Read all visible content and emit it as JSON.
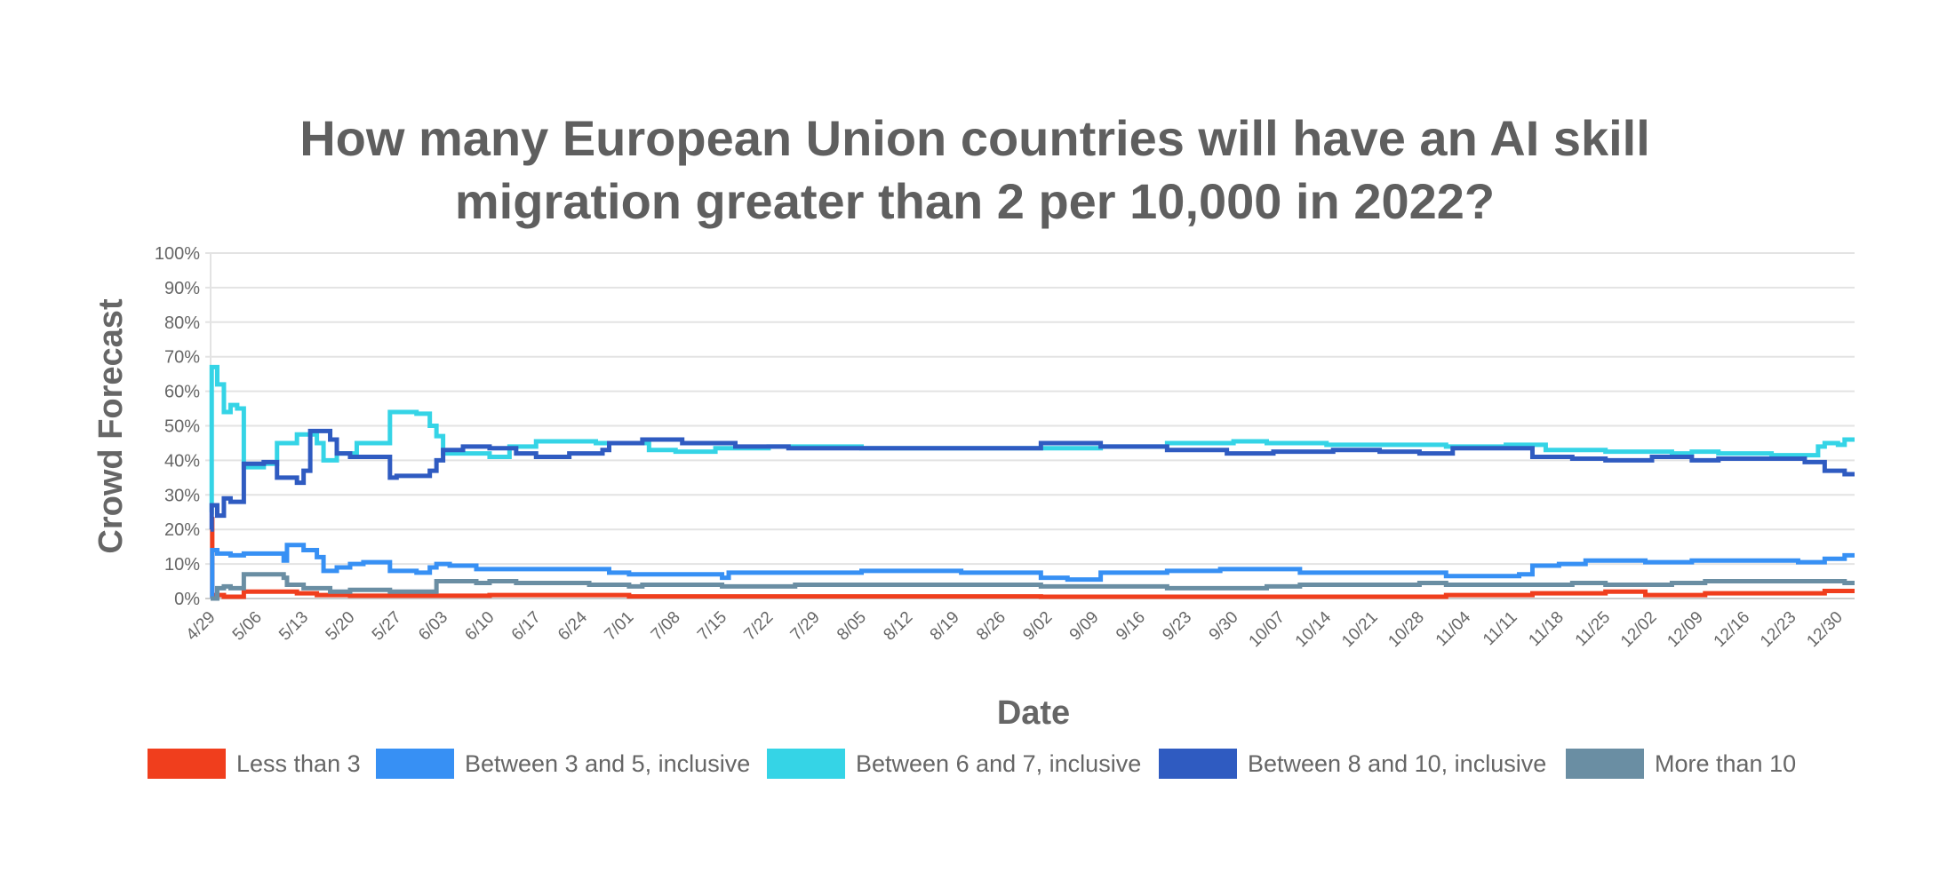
{
  "chart_data": {
    "type": "line",
    "step": true,
    "title_lines": [
      "How many European Union countries will have an AI skill",
      "migration greater than 2 per 10,000 in 2022?"
    ],
    "xlabel": "Date",
    "ylabel": "Crowd Forecast",
    "xlim": [
      "2022-04-29",
      "2023-01-01"
    ],
    "ylim": [
      0,
      100
    ],
    "yticks": [
      "0%",
      "10%",
      "20%",
      "30%",
      "40%",
      "50%",
      "60%",
      "70%",
      "80%",
      "90%",
      "100%"
    ],
    "xticks": [
      "4/29",
      "5/06",
      "5/13",
      "5/20",
      "5/27",
      "6/03",
      "6/10",
      "6/17",
      "6/24",
      "7/01",
      "7/08",
      "7/15",
      "7/22",
      "7/29",
      "8/05",
      "8/12",
      "8/19",
      "8/26",
      "9/02",
      "9/09",
      "9/16",
      "9/23",
      "9/30",
      "10/07",
      "10/14",
      "10/21",
      "10/28",
      "11/04",
      "11/11",
      "11/18",
      "11/25",
      "12/02",
      "12/09",
      "12/16",
      "12/23",
      "12/30"
    ],
    "xtick_dates": [
      "2022-04-29",
      "2022-05-06",
      "2022-05-13",
      "2022-05-20",
      "2022-05-27",
      "2022-06-03",
      "2022-06-10",
      "2022-06-17",
      "2022-06-24",
      "2022-07-01",
      "2022-07-08",
      "2022-07-15",
      "2022-07-22",
      "2022-07-29",
      "2022-08-05",
      "2022-08-12",
      "2022-08-19",
      "2022-08-26",
      "2022-09-02",
      "2022-09-09",
      "2022-09-16",
      "2022-09-23",
      "2022-09-30",
      "2022-10-07",
      "2022-10-14",
      "2022-10-21",
      "2022-10-28",
      "2022-11-04",
      "2022-11-11",
      "2022-11-18",
      "2022-11-25",
      "2022-12-02",
      "2022-12-09",
      "2022-12-16",
      "2022-12-23",
      "2022-12-30"
    ],
    "grid": true,
    "legend_position": "bottom",
    "series": [
      {
        "name": "Less than 3",
        "color": "#f03e1d",
        "points": [
          [
            "2022-04-29",
            23
          ],
          [
            "2022-04-29T06",
            1
          ],
          [
            "2022-05-01",
            0.5
          ],
          [
            "2022-05-04",
            2
          ],
          [
            "2022-05-12",
            1.5
          ],
          [
            "2022-05-15",
            1
          ],
          [
            "2022-05-20",
            0.8
          ],
          [
            "2022-06-10",
            1
          ],
          [
            "2022-07-01",
            0.6
          ],
          [
            "2022-09-01",
            0.5
          ],
          [
            "2022-11-01",
            1
          ],
          [
            "2022-11-14",
            1.5
          ],
          [
            "2022-11-25",
            2
          ],
          [
            "2022-12-01",
            1
          ],
          [
            "2022-12-10",
            1.5
          ],
          [
            "2022-12-28",
            2.2
          ]
        ]
      },
      {
        "name": "Between 3 and 5, inclusive",
        "color": "#3790f4",
        "points": [
          [
            "2022-04-29",
            0
          ],
          [
            "2022-04-29T06",
            14
          ],
          [
            "2022-04-30",
            13
          ],
          [
            "2022-05-02",
            12.5
          ],
          [
            "2022-05-04",
            13
          ],
          [
            "2022-05-10",
            11
          ],
          [
            "2022-05-10T12",
            15.5
          ],
          [
            "2022-05-13",
            14
          ],
          [
            "2022-05-15",
            12
          ],
          [
            "2022-05-16",
            8
          ],
          [
            "2022-05-18",
            9
          ],
          [
            "2022-05-20",
            10
          ],
          [
            "2022-05-22",
            10.5
          ],
          [
            "2022-05-26",
            8
          ],
          [
            "2022-05-30",
            7.5
          ],
          [
            "2022-06-01",
            9
          ],
          [
            "2022-06-02",
            10
          ],
          [
            "2022-06-04",
            9.5
          ],
          [
            "2022-06-08",
            8.5
          ],
          [
            "2022-06-20",
            8.5
          ],
          [
            "2022-06-28",
            7.5
          ],
          [
            "2022-07-01",
            7
          ],
          [
            "2022-07-10",
            7
          ],
          [
            "2022-07-15",
            6
          ],
          [
            "2022-07-16",
            7.5
          ],
          [
            "2022-08-05",
            8
          ],
          [
            "2022-08-20",
            7.5
          ],
          [
            "2022-09-01",
            6
          ],
          [
            "2022-09-05",
            5.5
          ],
          [
            "2022-09-10",
            7.5
          ],
          [
            "2022-09-20",
            8
          ],
          [
            "2022-09-28",
            8.5
          ],
          [
            "2022-10-10",
            7.5
          ],
          [
            "2022-10-28",
            7.5
          ],
          [
            "2022-11-01",
            6.5
          ],
          [
            "2022-11-12",
            7
          ],
          [
            "2022-11-14",
            9.5
          ],
          [
            "2022-11-18",
            10
          ],
          [
            "2022-11-22",
            11
          ],
          [
            "2022-12-01",
            10.5
          ],
          [
            "2022-12-08",
            11
          ],
          [
            "2022-12-20",
            11
          ],
          [
            "2022-12-24",
            10.5
          ],
          [
            "2022-12-28",
            11.5
          ],
          [
            "2022-12-31",
            12.5
          ]
        ]
      },
      {
        "name": "Between 6 and 7, inclusive",
        "color": "#35d4e6",
        "points": [
          [
            "2022-04-29",
            25
          ],
          [
            "2022-04-29T04",
            67
          ],
          [
            "2022-04-30",
            62
          ],
          [
            "2022-05-01",
            54
          ],
          [
            "2022-05-02",
            56
          ],
          [
            "2022-05-03",
            55
          ],
          [
            "2022-05-04",
            38
          ],
          [
            "2022-05-07",
            39
          ],
          [
            "2022-05-09",
            45
          ],
          [
            "2022-05-12",
            47.5
          ],
          [
            "2022-05-15",
            45
          ],
          [
            "2022-05-16",
            40
          ],
          [
            "2022-05-18",
            42
          ],
          [
            "2022-05-21",
            45
          ],
          [
            "2022-05-26",
            54
          ],
          [
            "2022-05-30",
            53.5
          ],
          [
            "2022-06-01",
            50
          ],
          [
            "2022-06-02",
            47
          ],
          [
            "2022-06-03",
            42
          ],
          [
            "2022-06-08",
            42
          ],
          [
            "2022-06-10",
            41
          ],
          [
            "2022-06-13",
            44
          ],
          [
            "2022-06-17",
            45.5
          ],
          [
            "2022-06-26",
            45
          ],
          [
            "2022-07-04",
            43
          ],
          [
            "2022-07-08",
            42.5
          ],
          [
            "2022-07-14",
            43.5
          ],
          [
            "2022-07-22",
            44
          ],
          [
            "2022-08-05",
            43.5
          ],
          [
            "2022-09-10",
            44
          ],
          [
            "2022-09-20",
            45
          ],
          [
            "2022-09-30",
            45.5
          ],
          [
            "2022-10-05",
            45
          ],
          [
            "2022-10-14",
            44.5
          ],
          [
            "2022-11-01",
            44
          ],
          [
            "2022-11-10",
            44.5
          ],
          [
            "2022-11-16",
            43
          ],
          [
            "2022-11-25",
            42.5
          ],
          [
            "2022-12-05",
            42
          ],
          [
            "2022-12-08",
            42.5
          ],
          [
            "2022-12-12",
            42
          ],
          [
            "2022-12-20",
            41.5
          ],
          [
            "2022-12-27",
            44
          ],
          [
            "2022-12-28",
            45
          ],
          [
            "2022-12-30",
            44.5
          ],
          [
            "2022-12-31",
            46
          ]
        ]
      },
      {
        "name": "Between 8 and 10, inclusive",
        "color": "#2f5bc1",
        "points": [
          [
            "2022-04-29",
            20
          ],
          [
            "2022-04-29T04",
            27
          ],
          [
            "2022-04-30",
            24
          ],
          [
            "2022-05-01",
            29
          ],
          [
            "2022-05-02",
            28
          ],
          [
            "2022-05-04",
            39
          ],
          [
            "2022-05-07",
            39.5
          ],
          [
            "2022-05-09",
            35
          ],
          [
            "2022-05-12",
            33.5
          ],
          [
            "2022-05-13",
            37
          ],
          [
            "2022-05-14",
            48.5
          ],
          [
            "2022-05-17",
            46
          ],
          [
            "2022-05-18",
            42
          ],
          [
            "2022-05-20",
            41
          ],
          [
            "2022-05-26",
            35
          ],
          [
            "2022-05-27",
            35.5
          ],
          [
            "2022-06-01",
            37
          ],
          [
            "2022-06-02",
            40
          ],
          [
            "2022-06-03",
            43
          ],
          [
            "2022-06-06",
            44
          ],
          [
            "2022-06-10",
            43.5
          ],
          [
            "2022-06-14",
            42
          ],
          [
            "2022-06-17",
            41
          ],
          [
            "2022-06-22",
            42
          ],
          [
            "2022-06-27",
            43
          ],
          [
            "2022-06-28",
            45
          ],
          [
            "2022-07-03",
            46
          ],
          [
            "2022-07-09",
            45
          ],
          [
            "2022-07-17",
            44
          ],
          [
            "2022-07-25",
            43.5
          ],
          [
            "2022-09-01",
            45
          ],
          [
            "2022-09-10",
            44
          ],
          [
            "2022-09-20",
            43
          ],
          [
            "2022-09-29",
            42
          ],
          [
            "2022-10-06",
            42.5
          ],
          [
            "2022-10-15",
            43
          ],
          [
            "2022-10-22",
            42.5
          ],
          [
            "2022-10-28",
            42
          ],
          [
            "2022-11-02",
            43.5
          ],
          [
            "2022-11-14",
            41
          ],
          [
            "2022-11-20",
            40.5
          ],
          [
            "2022-11-25",
            40
          ],
          [
            "2022-12-02",
            41
          ],
          [
            "2022-12-08",
            40
          ],
          [
            "2022-12-12",
            40.5
          ],
          [
            "2022-12-25",
            39.5
          ],
          [
            "2022-12-28",
            37
          ],
          [
            "2022-12-31",
            36
          ]
        ]
      },
      {
        "name": "More than 10",
        "color": "#6a8ea3",
        "points": [
          [
            "2022-04-29",
            0
          ],
          [
            "2022-04-30",
            3
          ],
          [
            "2022-05-01",
            3.5
          ],
          [
            "2022-05-02",
            3
          ],
          [
            "2022-05-04",
            7
          ],
          [
            "2022-05-10",
            6
          ],
          [
            "2022-05-10T12",
            4
          ],
          [
            "2022-05-13",
            3
          ],
          [
            "2022-05-17",
            2
          ],
          [
            "2022-05-20",
            2.5
          ],
          [
            "2022-05-26",
            2
          ],
          [
            "2022-06-02",
            5
          ],
          [
            "2022-06-08",
            4.5
          ],
          [
            "2022-06-10",
            5
          ],
          [
            "2022-06-14",
            4.5
          ],
          [
            "2022-06-25",
            4
          ],
          [
            "2022-07-01",
            3.5
          ],
          [
            "2022-07-03",
            4
          ],
          [
            "2022-07-15",
            3.5
          ],
          [
            "2022-07-26",
            4
          ],
          [
            "2022-09-01",
            3.5
          ],
          [
            "2022-09-20",
            3
          ],
          [
            "2022-10-05",
            3.5
          ],
          [
            "2022-10-10",
            4
          ],
          [
            "2022-10-28",
            4.5
          ],
          [
            "2022-11-01",
            4
          ],
          [
            "2022-11-20",
            4.5
          ],
          [
            "2022-11-25",
            4
          ],
          [
            "2022-12-05",
            4.5
          ],
          [
            "2022-12-10",
            5
          ],
          [
            "2022-12-25",
            5
          ],
          [
            "2022-12-31",
            4.5
          ]
        ]
      }
    ]
  }
}
